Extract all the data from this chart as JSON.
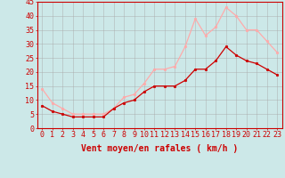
{
  "x": [
    0,
    1,
    2,
    3,
    4,
    5,
    6,
    7,
    8,
    9,
    10,
    11,
    12,
    13,
    14,
    15,
    16,
    17,
    18,
    19,
    20,
    21,
    22,
    23
  ],
  "wind_avg": [
    8,
    6,
    5,
    4,
    4,
    4,
    4,
    7,
    9,
    10,
    13,
    15,
    15,
    15,
    17,
    21,
    21,
    24,
    29,
    26,
    24,
    23,
    21,
    19
  ],
  "wind_gust": [
    14,
    9,
    7,
    5,
    5,
    5,
    5,
    7,
    11,
    12,
    16,
    21,
    21,
    22,
    29,
    39,
    33,
    36,
    43,
    40,
    35,
    35,
    31,
    27
  ],
  "avg_color": "#cc0000",
  "gust_color": "#ffaaaa",
  "bg_color": "#cce8e8",
  "grid_color": "#aaaaaa",
  "xlabel": "Vent moyen/en rafales ( km/h )",
  "ylim": [
    0,
    45
  ],
  "yticks": [
    0,
    5,
    10,
    15,
    20,
    25,
    30,
    35,
    40,
    45
  ],
  "xticks": [
    0,
    1,
    2,
    3,
    4,
    5,
    6,
    7,
    8,
    9,
    10,
    11,
    12,
    13,
    14,
    15,
    16,
    17,
    18,
    19,
    20,
    21,
    22,
    23
  ],
  "label_fontsize": 7,
  "tick_fontsize": 6
}
